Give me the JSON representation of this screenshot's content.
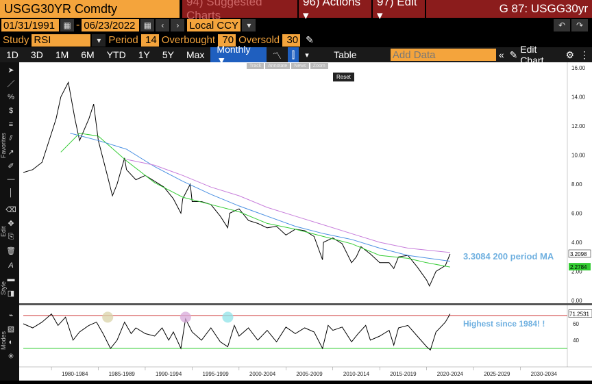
{
  "header": {
    "ticker": "USGG30YR Comdty",
    "suggested": "94) Suggested Charts",
    "actions": "96) Actions ▾",
    "edit": "97) Edit ▾",
    "right_title": "G 87: USGG30yr"
  },
  "dates": {
    "start": "01/31/1991",
    "sep": "-",
    "end": "06/23/2022",
    "currency": "Local CCY"
  },
  "study": {
    "label": "Study",
    "value": "RSI",
    "period_label": "Period",
    "period": "14",
    "overbought_label": "Overbought",
    "overbought": "70",
    "oversold_label": "Oversold",
    "oversold": "30"
  },
  "periods": [
    "1D",
    "3D",
    "1M",
    "6M",
    "YTD",
    "1Y",
    "5Y",
    "Max"
  ],
  "freq": "Monthly ▼",
  "table_label": "Table",
  "add_data_placeholder": "Add Data",
  "edit_chart": "Edit Chart",
  "mini_tools": [
    "Track",
    "Annotate",
    "News",
    "Zoom"
  ],
  "reset_label": "Reset",
  "sidebar_labels": {
    "favorites": "Favorites",
    "edit": "Edit",
    "style": "Style",
    "modes": "Modes"
  },
  "annotations": {
    "ma": "3.3084 200 period MA",
    "rsi": "Highest since 1984! !"
  },
  "colors": {
    "price": "#000000",
    "ma_short": "#33cc33",
    "ma_mid": "#4a90e2",
    "ma_long": "#c77ddb",
    "rsi": "#000000",
    "ob_line": "#cc3333",
    "os_line": "#33cc33",
    "orange": "#f4a43c"
  },
  "chart_data": [
    {
      "type": "line",
      "title": "",
      "ylim": [
        0,
        16
      ],
      "yticks": [
        "0.00",
        "2.00",
        "4.00",
        "6.00",
        "8.00",
        "10.00",
        "12.00",
        "14.00",
        "16.00"
      ],
      "x_labels": [
        "1980-1984",
        "1985-1989",
        "1990-1994",
        "1995-1999",
        "2000-2004",
        "2005-2009",
        "2010-2014",
        "2015-2019",
        "2020-2024",
        "2025-2029",
        "2030-2034"
      ],
      "x_range": [
        1977,
        2035
      ],
      "last_labels": [
        "3.2098",
        "2.2784"
      ],
      "series": [
        {
          "x": [
            1977,
            1978,
            1979,
            1980,
            1980.5,
            1981,
            1981.8,
            1982.5,
            1983,
            1984,
            1984.5,
            1985,
            1986,
            1986.5,
            1987,
            1987.8,
            1988,
            1989,
            1990,
            1991,
            1992,
            1993,
            1993.8,
            1994,
            1994.8,
            1995,
            1996,
            1997,
            1998,
            1998.8,
            1999,
            2000,
            2001,
            2002,
            2003,
            2004,
            2005,
            2006,
            2007,
            2008,
            2008.9,
            2009,
            2010,
            2011,
            2012,
            2012.5,
            2013,
            2014,
            2015,
            2016,
            2016.5,
            2017,
            2018,
            2019,
            2020,
            2020.3,
            2021,
            2022,
            2022.5
          ],
          "y": [
            8.8,
            9.0,
            9.5,
            11.5,
            12.5,
            14.0,
            15.0,
            12.5,
            11.0,
            12.5,
            13.5,
            11.0,
            8.5,
            7.2,
            8.0,
            9.8,
            9.0,
            8.3,
            8.6,
            8.2,
            7.8,
            7.0,
            6.0,
            7.0,
            8.0,
            6.8,
            6.8,
            6.6,
            5.8,
            5.0,
            6.0,
            6.3,
            5.5,
            5.3,
            5.0,
            5.1,
            4.5,
            4.9,
            4.8,
            4.4,
            2.8,
            4.0,
            4.3,
            3.9,
            2.6,
            3.0,
            3.7,
            3.2,
            2.6,
            2.6,
            2.2,
            3.0,
            3.1,
            2.3,
            1.4,
            1.0,
            2.0,
            2.4,
            3.2
          ]
        },
        {
          "x": [
            1981,
            1983,
            1985,
            1988,
            1991,
            1994,
            1997,
            2000,
            2003,
            2006,
            2009,
            2012,
            2015,
            2018,
            2020,
            2022.5
          ],
          "y": [
            10.2,
            11.5,
            11.3,
            9.6,
            8.1,
            7.1,
            6.6,
            6.1,
            5.3,
            4.9,
            4.4,
            3.9,
            3.1,
            2.9,
            2.6,
            2.3
          ]
        },
        {
          "x": [
            1982,
            1985,
            1988,
            1991,
            1994,
            1997,
            2000,
            2003,
            2006,
            2009,
            2012,
            2015,
            2018,
            2022.5
          ],
          "y": [
            11.5,
            11.0,
            10.4,
            9.2,
            8.2,
            7.3,
            6.5,
            5.8,
            5.1,
            4.6,
            4.2,
            3.6,
            3.1,
            2.7
          ]
        },
        {
          "x": [
            1988,
            1991,
            1994,
            1997,
            2000,
            2003,
            2006,
            2009,
            2012,
            2015,
            2018,
            2022.5
          ],
          "y": [
            9.7,
            9.3,
            8.6,
            7.8,
            7.2,
            6.4,
            5.8,
            5.2,
            4.6,
            4.0,
            3.6,
            3.3
          ]
        }
      ]
    },
    {
      "type": "line",
      "title": "RSI",
      "ylim": [
        20,
        80
      ],
      "yticks": [
        "40",
        "60"
      ],
      "last_label": "71.2531",
      "overbought": 70,
      "oversold": 30,
      "series": [
        {
          "x": [
            1977,
            1978,
            1979,
            1980,
            1980.7,
            1981.5,
            1982.3,
            1983,
            1984,
            1984.8,
            1985.5,
            1986.3,
            1987,
            1987.8,
            1988.5,
            1989,
            1990,
            1991,
            1991.8,
            1992.5,
            1993,
            1993.8,
            1994.3,
            1995,
            1996,
            1997,
            1998,
            1998.8,
            1999.5,
            2000,
            2001,
            2002,
            2003,
            2004,
            2005,
            2006,
            2007,
            2008,
            2008.9,
            2009.5,
            2010,
            2011,
            2012,
            2012.7,
            2013.5,
            2014,
            2015,
            2016,
            2016.5,
            2017,
            2018,
            2019,
            2020,
            2020.4,
            2021,
            2021.5,
            2022,
            2022.5
          ],
          "y": [
            60,
            55,
            62,
            72,
            58,
            68,
            40,
            50,
            58,
            62,
            48,
            30,
            40,
            62,
            48,
            55,
            48,
            45,
            55,
            40,
            50,
            30,
            66,
            50,
            40,
            55,
            38,
            32,
            58,
            45,
            55,
            40,
            52,
            38,
            56,
            48,
            55,
            50,
            30,
            58,
            52,
            56,
            38,
            48,
            58,
            40,
            45,
            52,
            34,
            55,
            58,
            45,
            32,
            28,
            50,
            56,
            62,
            72
          ]
        }
      ]
    }
  ]
}
